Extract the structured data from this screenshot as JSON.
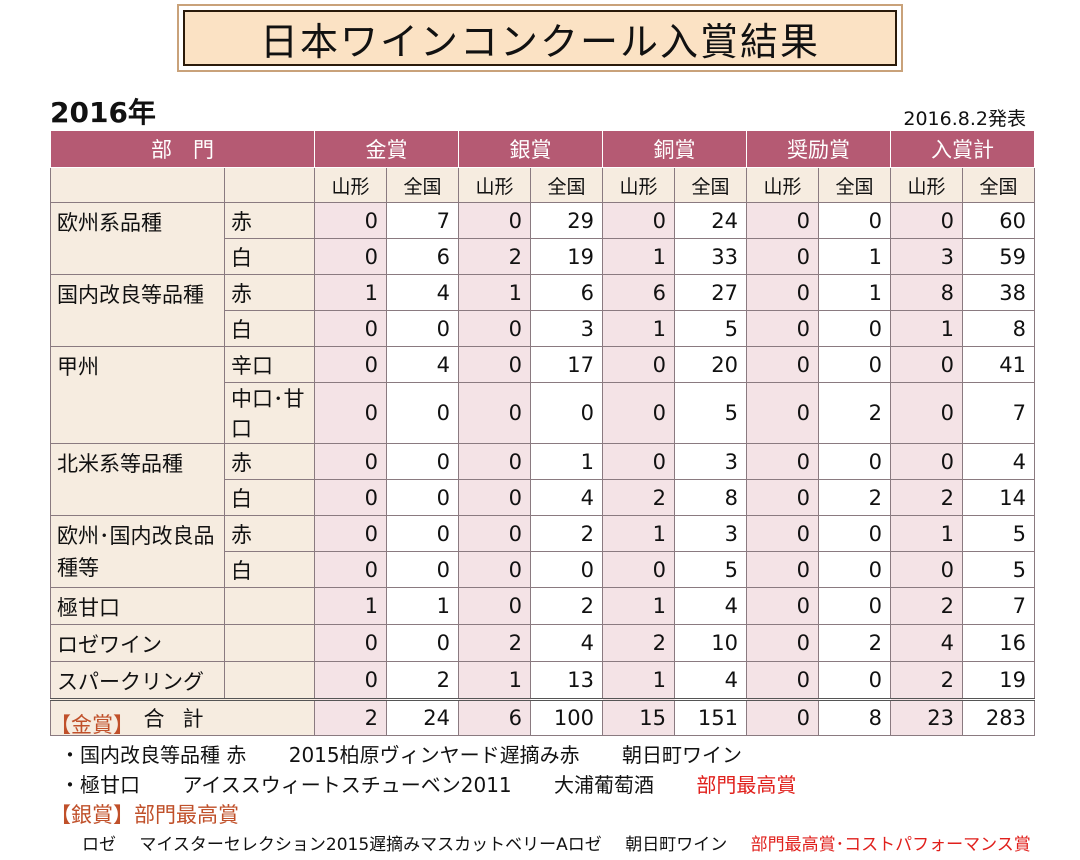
{
  "title": "日本ワインコンクール入賞結果",
  "year": "2016年",
  "date": "2016.8.2発表",
  "table": {
    "header": {
      "dept": "部　門",
      "awards": [
        "金賞",
        "銀賞",
        "銅賞",
        "奨励賞",
        "入賞計"
      ]
    },
    "subheader": [
      "山形",
      "全国",
      "山形",
      "全国",
      "山形",
      "全国",
      "山形",
      "全国",
      "山形",
      "全国"
    ],
    "groups": [
      {
        "category": "欧州系品種",
        "rows": [
          {
            "type": "赤",
            "values": [
              "0",
              "7",
              "0",
              "29",
              "0",
              "24",
              "0",
              "0",
              "0",
              "60"
            ]
          },
          {
            "type": "白",
            "values": [
              "0",
              "6",
              "2",
              "19",
              "1",
              "33",
              "0",
              "1",
              "3",
              "59"
            ]
          }
        ]
      },
      {
        "category": "国内改良等品種",
        "rows": [
          {
            "type": "赤",
            "values": [
              "1",
              "4",
              "1",
              "6",
              "6",
              "27",
              "0",
              "1",
              "8",
              "38"
            ]
          },
          {
            "type": "白",
            "values": [
              "0",
              "0",
              "0",
              "3",
              "1",
              "5",
              "0",
              "0",
              "1",
              "8"
            ]
          }
        ]
      },
      {
        "category": "甲州",
        "rows": [
          {
            "type": "辛口",
            "values": [
              "0",
              "4",
              "0",
              "17",
              "0",
              "20",
              "0",
              "0",
              "0",
              "41"
            ]
          },
          {
            "type": "中口･甘口",
            "values": [
              "0",
              "0",
              "0",
              "0",
              "0",
              "5",
              "0",
              "2",
              "0",
              "7"
            ]
          }
        ]
      },
      {
        "category": "北米系等品種",
        "rows": [
          {
            "type": "赤",
            "values": [
              "0",
              "0",
              "0",
              "1",
              "0",
              "3",
              "0",
              "0",
              "0",
              "4"
            ]
          },
          {
            "type": "白",
            "values": [
              "0",
              "0",
              "0",
              "4",
              "2",
              "8",
              "0",
              "2",
              "2",
              "14"
            ]
          }
        ]
      },
      {
        "category": "欧州･国内改良品種等",
        "rows": [
          {
            "type": "赤",
            "values": [
              "0",
              "0",
              "0",
              "2",
              "1",
              "3",
              "0",
              "0",
              "1",
              "5"
            ]
          },
          {
            "type": "白",
            "values": [
              "0",
              "0",
              "0",
              "0",
              "0",
              "5",
              "0",
              "0",
              "0",
              "5"
            ]
          }
        ]
      },
      {
        "category": "極甘口",
        "rows": [
          {
            "type": "",
            "values": [
              "1",
              "1",
              "0",
              "2",
              "1",
              "4",
              "0",
              "0",
              "2",
              "7"
            ]
          }
        ]
      },
      {
        "category": "ロゼワイン",
        "rows": [
          {
            "type": "",
            "values": [
              "0",
              "0",
              "2",
              "4",
              "2",
              "10",
              "0",
              "2",
              "4",
              "16"
            ]
          }
        ]
      },
      {
        "category": "スパークリング",
        "rows": [
          {
            "type": "",
            "values": [
              "0",
              "2",
              "1",
              "13",
              "1",
              "4",
              "0",
              "0",
              "2",
              "19"
            ]
          }
        ]
      }
    ],
    "total": {
      "label": "合計",
      "values": [
        "2",
        "24",
        "6",
        "100",
        "15",
        "151",
        "0",
        "8",
        "23",
        "283"
      ]
    }
  },
  "notes": {
    "gold_head": "【金賞】",
    "gold_1": {
      "item": "・国内改良等品種 赤",
      "wine": "2015柏原ヴィンヤード遅摘み赤",
      "winery": "朝日町ワイン"
    },
    "gold_2": {
      "item": "・極甘口",
      "wine": "アイススウィートスチューベン2011",
      "winery": "大浦葡萄酒",
      "badge": "部門最高賞"
    },
    "silver_head": "【銀賞】部門最高賞",
    "silver_1": {
      "item": "ロゼ",
      "wine": "マイスターセレクション2015遅摘みマスカットベリーAロゼ",
      "winery": "朝日町ワイン",
      "badge": "部門最高賞･コストパフォーマンス賞"
    }
  }
}
